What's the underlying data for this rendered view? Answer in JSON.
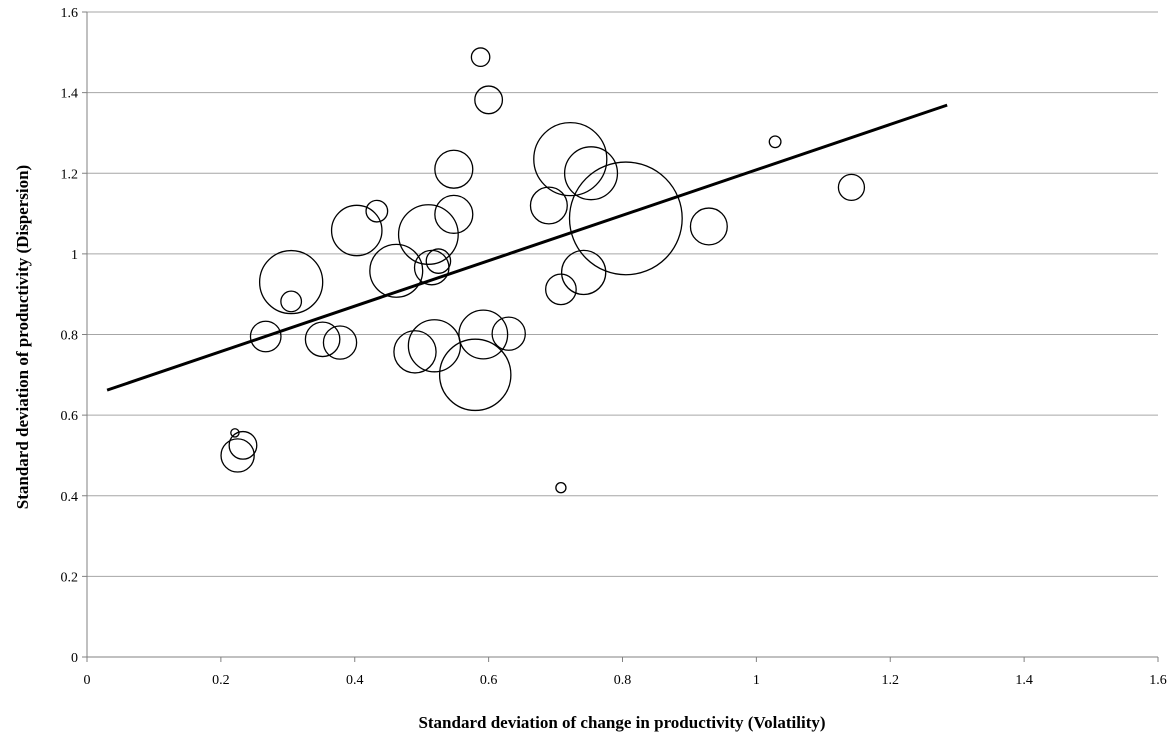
{
  "chart_data": {
    "type": "scatter",
    "subtype": "bubble",
    "title": "",
    "xlabel": "Standard deviation of change in productivity (Volatility)",
    "ylabel": "Standard deviation of productivity (Dispersion)",
    "xlim": [
      0,
      1.6
    ],
    "ylim": [
      0,
      1.6
    ],
    "x_ticks": [
      "0",
      "0.2",
      "0.4",
      "0.6",
      "0.8",
      "1",
      "1.2",
      "1.4",
      "1.6"
    ],
    "y_ticks": [
      "0",
      "0.2",
      "0.4",
      "0.6",
      "0.8",
      "1",
      "1.2",
      "1.4",
      "1.6"
    ],
    "grid": "horizontal",
    "legend": "none",
    "colors": {
      "bubble_stroke": "#000000",
      "trendline": "#000000",
      "grid": "#a6a6a6"
    },
    "trendline": {
      "x": [
        0.03,
        1.285
      ],
      "y": [
        0.662,
        1.369
      ]
    },
    "bubble_size_unit": "relative area",
    "points": [
      {
        "x": 0.588,
        "y": 1.488,
        "size": 4
      },
      {
        "x": 0.6,
        "y": 1.382,
        "size": 9
      },
      {
        "x": 1.028,
        "y": 1.278,
        "size": 1.6
      },
      {
        "x": 0.722,
        "y": 1.235,
        "size": 63
      },
      {
        "x": 0.753,
        "y": 1.2,
        "size": 33
      },
      {
        "x": 0.548,
        "y": 1.21,
        "size": 17
      },
      {
        "x": 1.142,
        "y": 1.165,
        "size": 8
      },
      {
        "x": 0.69,
        "y": 1.12,
        "size": 16
      },
      {
        "x": 0.433,
        "y": 1.106,
        "size": 5.5
      },
      {
        "x": 0.548,
        "y": 1.098,
        "size": 17
      },
      {
        "x": 0.805,
        "y": 1.088,
        "size": 150
      },
      {
        "x": 0.403,
        "y": 1.058,
        "size": 30
      },
      {
        "x": 0.51,
        "y": 1.048,
        "size": 42
      },
      {
        "x": 0.929,
        "y": 1.068,
        "size": 16
      },
      {
        "x": 0.525,
        "y": 0.982,
        "size": 7
      },
      {
        "x": 0.515,
        "y": 0.966,
        "size": 14
      },
      {
        "x": 0.462,
        "y": 0.958,
        "size": 33
      },
      {
        "x": 0.742,
        "y": 0.954,
        "size": 23
      },
      {
        "x": 0.708,
        "y": 0.912,
        "size": 11
      },
      {
        "x": 0.305,
        "y": 0.93,
        "size": 47
      },
      {
        "x": 0.305,
        "y": 0.882,
        "size": 5
      },
      {
        "x": 0.267,
        "y": 0.795,
        "size": 11
      },
      {
        "x": 0.352,
        "y": 0.788,
        "size": 14
      },
      {
        "x": 0.378,
        "y": 0.78,
        "size": 13
      },
      {
        "x": 0.592,
        "y": 0.8,
        "size": 28
      },
      {
        "x": 0.63,
        "y": 0.802,
        "size": 13
      },
      {
        "x": 0.519,
        "y": 0.772,
        "size": 32
      },
      {
        "x": 0.49,
        "y": 0.757,
        "size": 21
      },
      {
        "x": 0.58,
        "y": 0.7,
        "size": 60
      },
      {
        "x": 0.221,
        "y": 0.556,
        "size": 0.8
      },
      {
        "x": 0.233,
        "y": 0.525,
        "size": 9
      },
      {
        "x": 0.225,
        "y": 0.5,
        "size": 13
      },
      {
        "x": 0.708,
        "y": 0.42,
        "size": 1.2
      }
    ]
  }
}
